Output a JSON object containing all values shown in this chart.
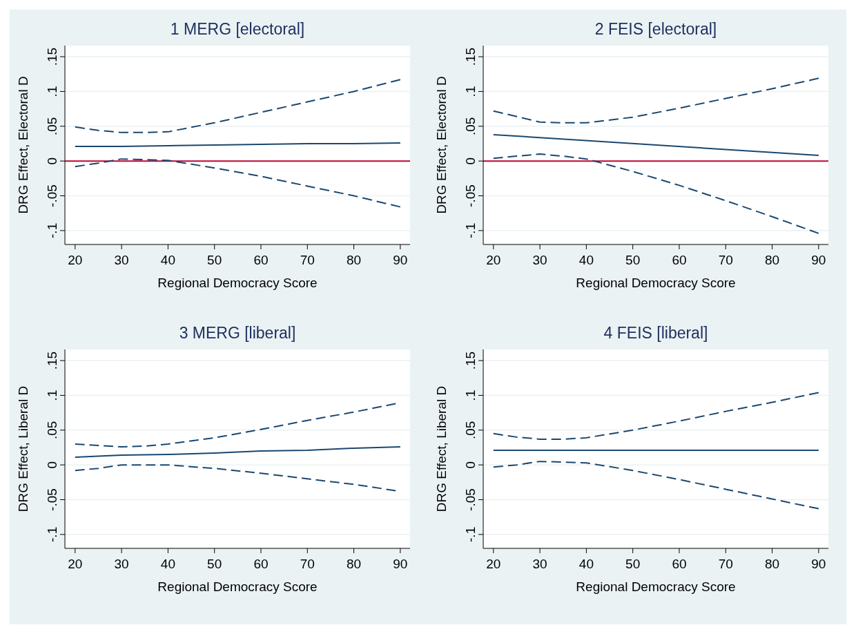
{
  "chart_data": [
    {
      "type": "line",
      "title": "1 MERG [electoral]",
      "xlabel": "Regional Democracy Score",
      "ylabel": "DRG Effect,  Electoral D",
      "xlim": [
        17.8,
        92.1
      ],
      "ylim": [
        -0.12,
        0.166
      ],
      "xticks": [
        20,
        30,
        40,
        50,
        60,
        70,
        80,
        90
      ],
      "yticks": [
        {
          "value": -0.1,
          "label": "-.1"
        },
        {
          "value": -0.05,
          "label": "-.05"
        },
        {
          "value": 0,
          "label": "0"
        },
        {
          "value": 0.05,
          "label": ".05"
        },
        {
          "value": 0.1,
          "label": ".1"
        },
        {
          "value": 0.15,
          "label": ".15"
        }
      ],
      "grid": "y",
      "ref_lines": [
        {
          "axis": "y",
          "value": 0,
          "color": "#c10534"
        }
      ],
      "series": [
        {
          "color": "#1a476f",
          "line_style": "solid",
          "x": [
            20,
            30,
            40,
            50,
            60,
            70,
            80,
            90
          ],
          "values": [
            0.021,
            0.021,
            0.022,
            0.023,
            0.024,
            0.025,
            0.025,
            0.026
          ]
        },
        {
          "color": "#1a476f",
          "line_style": "dashed",
          "x": [
            20,
            25,
            30,
            35,
            40,
            50,
            60,
            70,
            80,
            90
          ],
          "values": [
            0.049,
            0.044,
            0.041,
            0.041,
            0.042,
            0.055,
            0.07,
            0.085,
            0.1,
            0.117
          ]
        },
        {
          "color": "#1a476f",
          "line_style": "dashed",
          "x": [
            20,
            25,
            30,
            35,
            40,
            50,
            60,
            70,
            80,
            90
          ],
          "values": [
            -0.008,
            -0.003,
            0.003,
            0.002,
            0.001,
            -0.01,
            -0.022,
            -0.036,
            -0.05,
            -0.066
          ]
        }
      ]
    },
    {
      "type": "line",
      "title": "2 FEIS [electoral]",
      "xlabel": "Regional Democracy Score",
      "ylabel": "DRG Effect,  Electoral D",
      "xlim": [
        17.8,
        92.1
      ],
      "ylim": [
        -0.12,
        0.166
      ],
      "xticks": [
        20,
        30,
        40,
        50,
        60,
        70,
        80,
        90
      ],
      "yticks": [
        {
          "value": -0.1,
          "label": "-.1"
        },
        {
          "value": -0.05,
          "label": "-.05"
        },
        {
          "value": 0,
          "label": "0"
        },
        {
          "value": 0.05,
          "label": ".05"
        },
        {
          "value": 0.1,
          "label": ".1"
        },
        {
          "value": 0.15,
          "label": ".15"
        }
      ],
      "grid": "y",
      "ref_lines": [
        {
          "axis": "y",
          "value": 0,
          "color": "#c10534"
        }
      ],
      "series": [
        {
          "color": "#1a476f",
          "line_style": "solid",
          "x": [
            20,
            90
          ],
          "values": [
            0.038,
            0.008
          ]
        },
        {
          "color": "#1a476f",
          "line_style": "dashed",
          "x": [
            20,
            25,
            30,
            35,
            40,
            50,
            60,
            70,
            80,
            90
          ],
          "values": [
            0.072,
            0.064,
            0.056,
            0.055,
            0.055,
            0.063,
            0.076,
            0.09,
            0.104,
            0.119
          ]
        },
        {
          "color": "#1a476f",
          "line_style": "dashed",
          "x": [
            20,
            25,
            30,
            35,
            40,
            50,
            60,
            70,
            80,
            90
          ],
          "values": [
            0.004,
            0.007,
            0.01,
            0.007,
            0.003,
            -0.015,
            -0.035,
            -0.057,
            -0.08,
            -0.104
          ]
        }
      ]
    },
    {
      "type": "line",
      "title": "3 MERG [liberal]",
      "xlabel": "Regional Democracy Score",
      "ylabel": "DRG Effect,  Liberal D",
      "xlim": [
        17.8,
        92.1
      ],
      "ylim": [
        -0.12,
        0.166
      ],
      "xticks": [
        20,
        30,
        40,
        50,
        60,
        70,
        80,
        90
      ],
      "yticks": [
        {
          "value": -0.1,
          "label": "-.1"
        },
        {
          "value": -0.05,
          "label": "-.05"
        },
        {
          "value": 0,
          "label": "0"
        },
        {
          "value": 0.05,
          "label": ".05"
        },
        {
          "value": 0.1,
          "label": ".1"
        },
        {
          "value": 0.15,
          "label": ".15"
        }
      ],
      "grid": "y",
      "series": [
        {
          "color": "#1a476f",
          "line_style": "solid",
          "x": [
            20,
            30,
            40,
            50,
            60,
            70,
            80,
            90
          ],
          "values": [
            0.011,
            0.014,
            0.015,
            0.017,
            0.02,
            0.021,
            0.024,
            0.026
          ]
        },
        {
          "color": "#1a476f",
          "line_style": "dashed",
          "x": [
            20,
            25,
            30,
            35,
            40,
            50,
            60,
            70,
            80,
            89
          ],
          "values": [
            0.03,
            0.028,
            0.026,
            0.027,
            0.03,
            0.039,
            0.051,
            0.064,
            0.076,
            0.088
          ]
        },
        {
          "color": "#1a476f",
          "line_style": "dashed",
          "x": [
            20,
            25,
            30,
            35,
            40,
            50,
            60,
            70,
            80,
            89
          ],
          "values": [
            -0.008,
            -0.005,
            0.0,
            0.0,
            0.0,
            -0.005,
            -0.012,
            -0.02,
            -0.028,
            -0.037
          ]
        }
      ]
    },
    {
      "type": "line",
      "title": "4 FEIS [liberal]",
      "xlabel": "Regional Democracy Score",
      "ylabel": "DRG Effect,  Liberal D",
      "xlim": [
        17.8,
        92.1
      ],
      "ylim": [
        -0.12,
        0.166
      ],
      "xticks": [
        20,
        30,
        40,
        50,
        60,
        70,
        80,
        90
      ],
      "yticks": [
        {
          "value": -0.1,
          "label": "-.1"
        },
        {
          "value": -0.05,
          "label": "-.05"
        },
        {
          "value": 0,
          "label": "0"
        },
        {
          "value": 0.05,
          "label": ".05"
        },
        {
          "value": 0.1,
          "label": ".1"
        },
        {
          "value": 0.15,
          "label": ".15"
        }
      ],
      "grid": "y",
      "series": [
        {
          "color": "#1a476f",
          "line_style": "solid",
          "x": [
            20,
            90
          ],
          "values": [
            0.021,
            0.021
          ]
        },
        {
          "color": "#1a476f",
          "line_style": "dashed",
          "x": [
            20,
            25,
            30,
            35,
            40,
            50,
            60,
            70,
            80,
            90
          ],
          "values": [
            0.045,
            0.04,
            0.037,
            0.037,
            0.039,
            0.05,
            0.063,
            0.077,
            0.09,
            0.104
          ]
        },
        {
          "color": "#1a476f",
          "line_style": "dashed",
          "x": [
            20,
            25,
            30,
            35,
            40,
            50,
            60,
            70,
            80,
            90
          ],
          "values": [
            -0.003,
            0.0,
            0.005,
            0.004,
            0.003,
            -0.008,
            -0.021,
            -0.035,
            -0.049,
            -0.063
          ]
        }
      ]
    }
  ]
}
